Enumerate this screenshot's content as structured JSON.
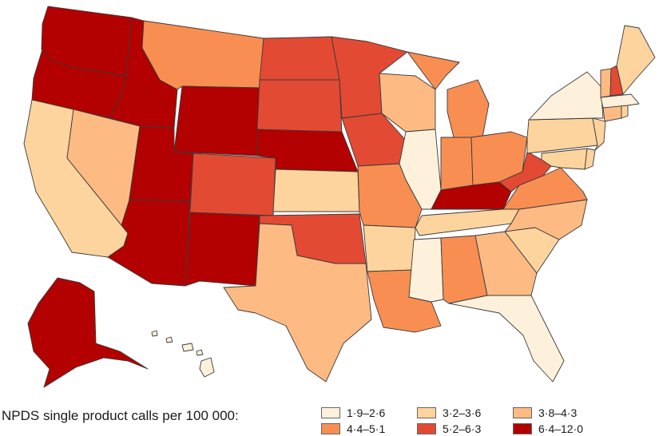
{
  "colors": {
    "bin1": "#fdf1dc",
    "bin2": "#fdd49e",
    "bin3": "#fdba83",
    "bin4": "#f98e52",
    "bin5": "#e34a33",
    "bin6": "#b30000",
    "outline": "#3a3a3a",
    "background": "#ffffff"
  },
  "legend": {
    "title": "NPDS single product calls per 100 000:",
    "bins": [
      {
        "label": "1·9–2·6",
        "color": "#fdf1dc"
      },
      {
        "label": "3·2–3·6",
        "color": "#fdd49e"
      },
      {
        "label": "3·8–4·3",
        "color": "#fdba83"
      },
      {
        "label": "4·4–5·1",
        "color": "#f98e52"
      },
      {
        "label": "5·2–6·3",
        "color": "#e34a33"
      },
      {
        "label": "6·4–12·0",
        "color": "#b30000"
      }
    ]
  },
  "map_data": {
    "type": "choropleth",
    "region": "United States",
    "state_bins": {
      "WA": 6,
      "OR": 6,
      "ID": 6,
      "WY": 6,
      "UT": 6,
      "AZ": 6,
      "NM": 6,
      "NE": 6,
      "KY": 6,
      "AK": 6,
      "ND": 5,
      "SD": 5,
      "MN": 5,
      "IA": 5,
      "CO": 5,
      "OK": 5,
      "WV": 5,
      "NH": 5,
      "MT": 4,
      "MO": 4,
      "IN": 4,
      "OH": 4,
      "MI": 4,
      "VA": 4,
      "AL": 4,
      "LA": 4,
      "NV": 3,
      "TX": 3,
      "GA": 3,
      "NC": 3,
      "WI": 3,
      "CT": 3,
      "VT": 3,
      "CA": 2,
      "KS": 2,
      "AR": 2,
      "TN": 2,
      "SC": 2,
      "PA": 2,
      "ME": 2,
      "MD": 2,
      "DE": 2,
      "NJ": 2,
      "RI": 2,
      "IL": 1,
      "MS": 1,
      "FL": 1,
      "NY": 1,
      "MA": 1,
      "HI": 1
    }
  }
}
